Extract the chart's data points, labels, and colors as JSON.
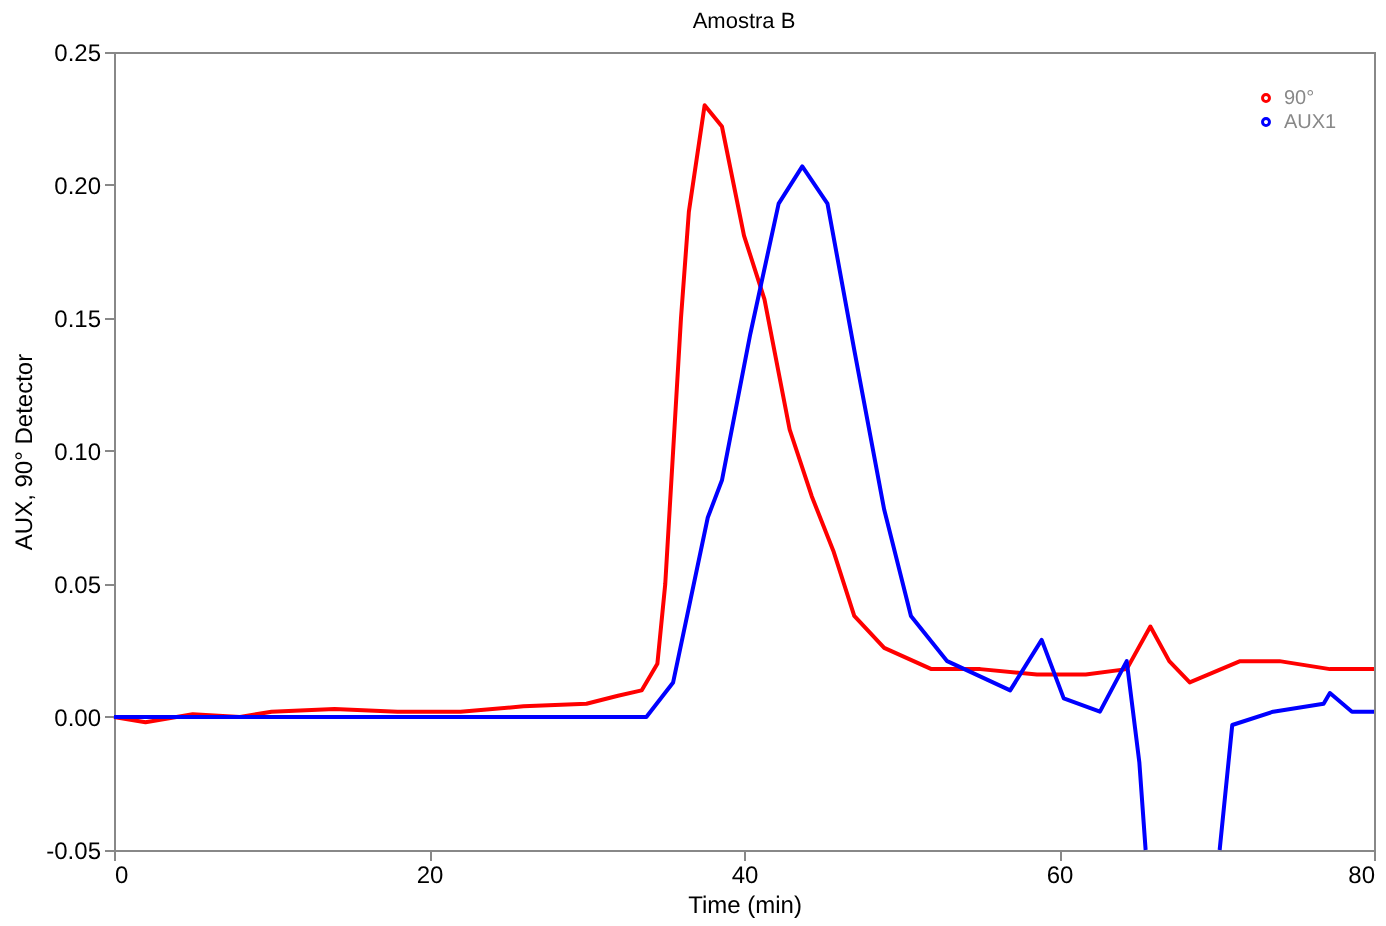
{
  "chart_data": {
    "type": "line",
    "title": "Amostra B",
    "xlabel": "Time (min)",
    "ylabel": "AUX, 90° Detector",
    "xlim": [
      0,
      80
    ],
    "xticks": [
      0,
      20,
      40,
      60,
      80
    ],
    "ylim": [
      -0.05,
      0.25
    ],
    "yticks": [
      {
        "value": -0.05,
        "label": "-0.05"
      },
      {
        "value": 0,
        "label": "0.00"
      },
      {
        "value": 0.05,
        "label": "0.05"
      },
      {
        "value": 0.1,
        "label": "0.10"
      },
      {
        "value": 0.15,
        "label": "0.15"
      },
      {
        "value": 0.2,
        "label": "0.20"
      },
      {
        "value": 0.25,
        "label": "0.25"
      }
    ],
    "grid": false,
    "legend": "top right",
    "marker": "none",
    "line_style": "solid",
    "series": [
      {
        "name": "90°",
        "color": "#ff0000",
        "x": [
          0,
          2,
          5,
          8,
          10,
          14,
          18,
          22,
          26,
          30,
          32,
          33.5,
          34.5,
          35,
          35.5,
          36,
          36.5,
          37.5,
          38.6,
          40,
          41.3,
          42.9,
          44.3,
          45.7,
          47,
          48.9,
          51.9,
          55,
          58.6,
          61.7,
          64.3,
          65.8,
          67,
          68.3,
          71.5,
          74,
          77.2,
          80
        ],
        "values": [
          0,
          -0.002,
          0.001,
          0,
          0.002,
          0.003,
          0.002,
          0.002,
          0.004,
          0.005,
          0.008,
          0.01,
          0.02,
          0.05,
          0.1,
          0.15,
          0.19,
          0.23,
          0.222,
          0.181,
          0.157,
          0.108,
          0.083,
          0.062,
          0.038,
          0.026,
          0.018,
          0.018,
          0.016,
          0.016,
          0.018,
          0.034,
          0.021,
          0.013,
          0.021,
          0.021,
          0.018,
          0.018
        ]
      },
      {
        "name": "AUX1",
        "color": "#0000ff",
        "x": [
          0,
          10,
          20,
          30,
          33.8,
          35.5,
          37.7,
          38.6,
          40.4,
          42.2,
          43.7,
          45.3,
          47,
          48.9,
          50.6,
          52.9,
          56.9,
          58.9,
          60.3,
          62.6,
          64.3,
          65.1,
          65.5,
          67.8,
          70.2,
          71,
          73.6,
          76.8,
          77.2,
          78.6,
          80
        ],
        "values": [
          0,
          0,
          0,
          0,
          0,
          0.013,
          0.075,
          0.089,
          0.144,
          0.193,
          0.207,
          0.193,
          0.138,
          0.078,
          0.038,
          0.021,
          0.01,
          0.029,
          0.007,
          0.002,
          0.021,
          -0.017,
          -0.05,
          null,
          -0.05,
          -0.003,
          0.002,
          0.005,
          0.009,
          0.002,
          0.002
        ]
      }
    ]
  }
}
